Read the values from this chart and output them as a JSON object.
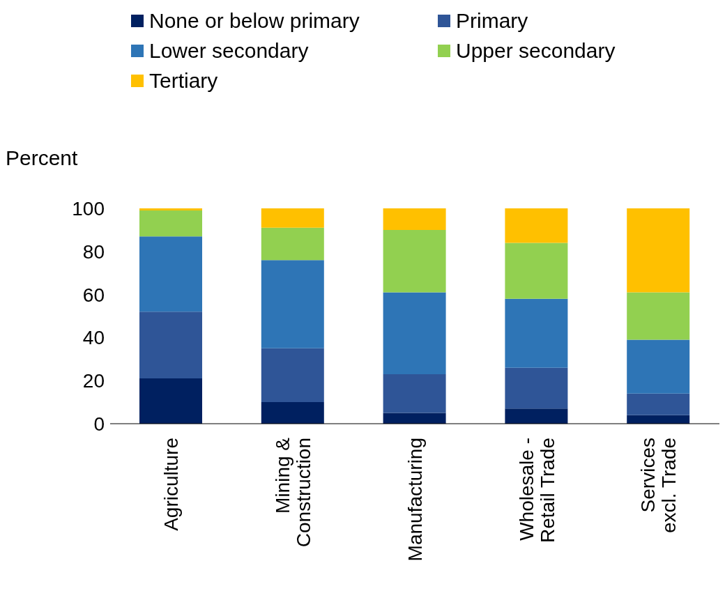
{
  "chart_data": {
    "type": "bar",
    "stacked": true,
    "ylabel": "Percent",
    "categories": [
      "Agriculture",
      "Mining & Construction",
      "Manufacturing",
      "Wholesale - Retail Trade",
      "Services excl. Trade"
    ],
    "series": [
      {
        "name": "None or below primary",
        "color": "#002060",
        "values": [
          21,
          10,
          5,
          7,
          4
        ]
      },
      {
        "name": "Primary",
        "color": "#2f5597",
        "values": [
          31,
          25,
          18,
          19,
          10
        ]
      },
      {
        "name": "Lower secondary",
        "color": "#2e75b6",
        "values": [
          35,
          41,
          38,
          32,
          25
        ]
      },
      {
        "name": "Upper secondary",
        "color": "#92d050",
        "values": [
          12,
          15,
          29,
          26,
          22
        ]
      },
      {
        "name": "Tertiary",
        "color": "#ffc000",
        "values": [
          1,
          9,
          10,
          16,
          39
        ]
      }
    ],
    "ylim": [
      0,
      100
    ],
    "yticks": [
      0,
      20,
      40,
      60,
      80,
      100
    ],
    "grid": false,
    "legend": "top"
  }
}
